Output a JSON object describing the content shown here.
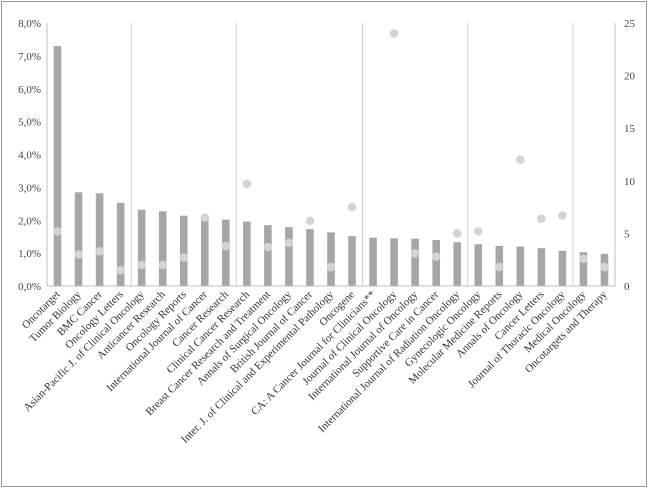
{
  "chart_data": {
    "type": "bar",
    "categories": [
      "Oncotarget",
      "Tumor Biology",
      "BMC Cancer",
      "Oncology Letters",
      "Asian-Pacific J. of Clinical Oncology",
      "Anticancer Research",
      "Oncology Reports",
      "International Journal of Cancer",
      "Cancer Research",
      "Clinical Cancer Research",
      "Breast Cancer Research and Treatment",
      "Annals of Surgical Oncology",
      "British Journal of Cancer",
      "Inter. J. of Clinical and Experimental Pathology",
      "Oncogene",
      "CA: A Cancer Journal for Clinicians**",
      "Journal of Clinical Oncology",
      "International Journal of Oncology",
      "Supportive Care in Cancer",
      "International Journal of Radiation Oncology",
      "Gynecologic Oncology",
      "Molecular Medicine Reports",
      "Annals of Oncology",
      "Cancer Letters",
      "Journal of Thoracic Oncology",
      "Medical Oncology",
      "Oncotargets and Therapy"
    ],
    "series": [
      {
        "axis": "left",
        "mark": "bar",
        "color": "#a6a6a6",
        "values": [
          7.3,
          2.85,
          2.82,
          2.53,
          2.32,
          2.27,
          2.14,
          2.1,
          2.02,
          1.96,
          1.85,
          1.79,
          1.73,
          1.63,
          1.52,
          1.47,
          1.45,
          1.44,
          1.4,
          1.33,
          1.27,
          1.22,
          1.2,
          1.15,
          1.07,
          1.03,
          0.98
        ]
      },
      {
        "axis": "right",
        "mark": "point",
        "color": "#d4d4d4",
        "values": [
          5.2,
          3.0,
          3.3,
          1.5,
          2.0,
          2.0,
          2.7,
          6.5,
          3.8,
          9.7,
          3.7,
          4.1,
          6.2,
          1.8,
          7.5,
          null,
          24.0,
          3.1,
          2.8,
          5.0,
          5.2,
          1.8,
          12.0,
          6.4,
          6.7,
          2.6,
          1.8
        ]
      }
    ],
    "y_left": {
      "ylim": [
        0,
        8
      ],
      "tick_labels": [
        "0,0%",
        "1,0%",
        "2,0%",
        "3,0%",
        "4,0%",
        "5,0%",
        "6,0%",
        "7,0%",
        "8,0%"
      ]
    },
    "y_right": {
      "ylim": [
        0,
        25
      ],
      "tick_labels": [
        "0",
        "5",
        "10",
        "15",
        "20",
        "25"
      ]
    },
    "group_dividers_after": [
      3,
      8,
      14,
      19,
      24
    ],
    "grid": false,
    "legend": "none",
    "title": "",
    "xlabel": "",
    "ylabel": ""
  }
}
